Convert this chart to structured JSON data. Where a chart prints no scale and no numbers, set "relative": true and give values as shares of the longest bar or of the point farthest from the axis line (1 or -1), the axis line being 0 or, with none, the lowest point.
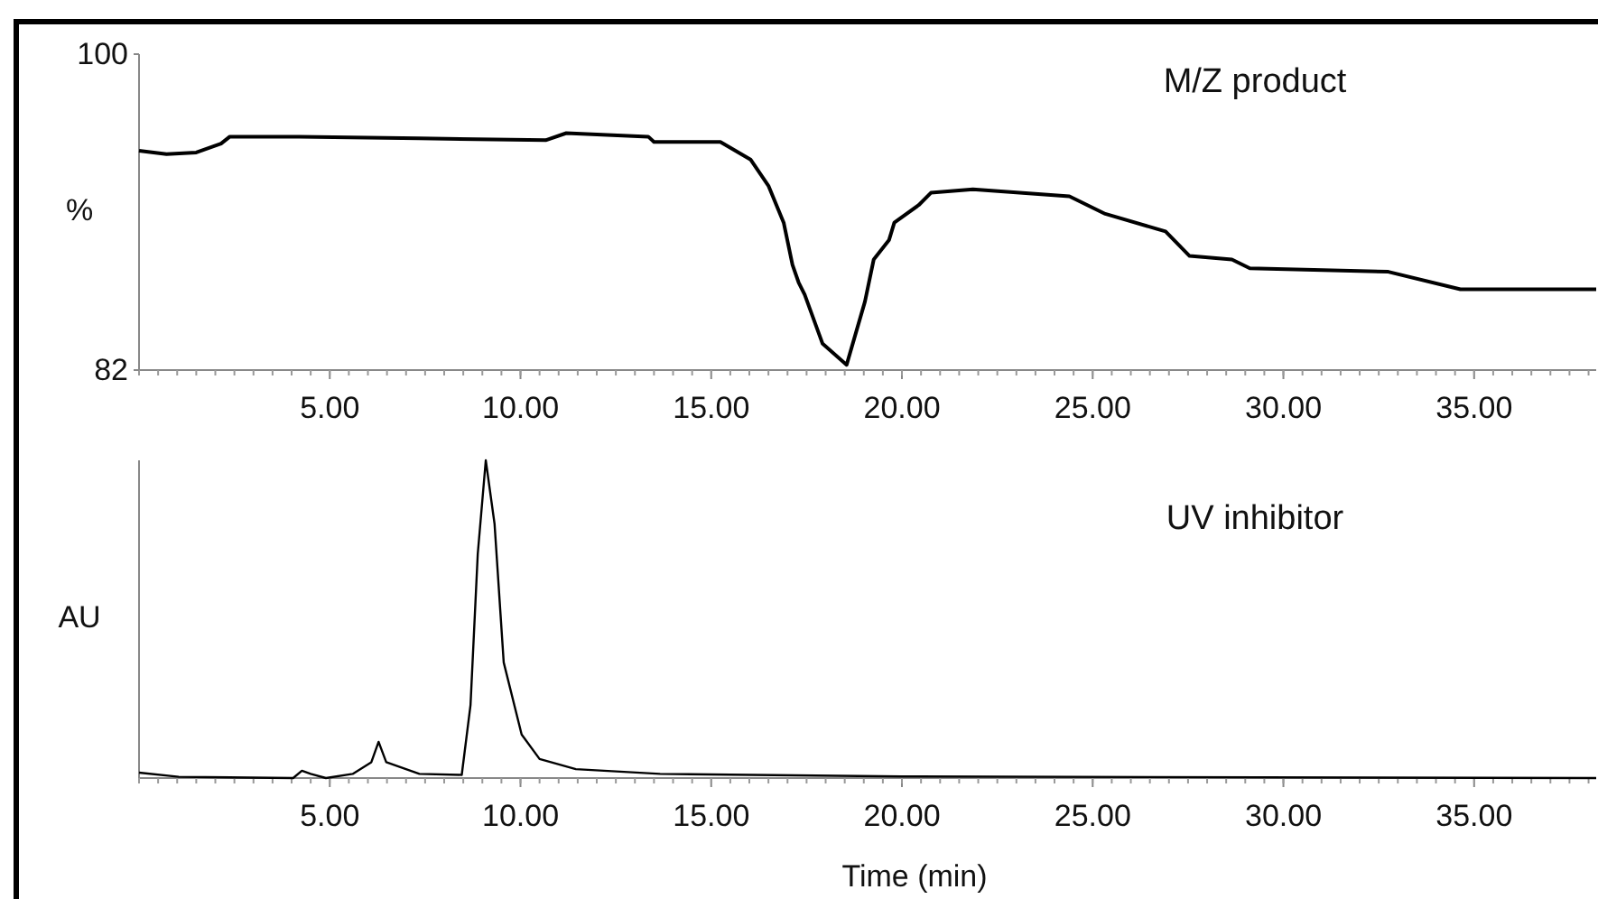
{
  "chart_data": [
    {
      "type": "line",
      "x": [
        0,
        0.72,
        1.5,
        2.15,
        2.38,
        4.2,
        7.35,
        10.66,
        11.2,
        13.35,
        13.5,
        15.24,
        16.03,
        16.5,
        16.9,
        17.13,
        17.29,
        17.45,
        17.92,
        18.55,
        19.03,
        19.26,
        19.66,
        19.8,
        20.44,
        20.76,
        21.86,
        24.39,
        25.33,
        26.91,
        27.54,
        28.65,
        29.12,
        32.75,
        34.64,
        38.2
      ],
      "series": [
        {
          "color": "#000000",
          "values": [
            94.5,
            94.3,
            94.4,
            94.9,
            95.3,
            95.3,
            95.2,
            95.1,
            95.5,
            95.3,
            95.0,
            95.0,
            94.0,
            92.5,
            90.4,
            88.0,
            87.0,
            86.3,
            83.5,
            82.3,
            85.9,
            88.3,
            89.4,
            90.4,
            91.4,
            92.1,
            92.3,
            91.9,
            90.9,
            89.9,
            88.5,
            88.3,
            87.8,
            87.6,
            86.6,
            86.6
          ]
        }
      ],
      "xlim": [
        0,
        38.2
      ],
      "xticks": [
        {
          "value": 5,
          "label": "5.00"
        },
        {
          "value": 10,
          "label": "10.00"
        },
        {
          "value": 15,
          "label": "15.00"
        },
        {
          "value": 20,
          "label": "20.00"
        },
        {
          "value": 25,
          "label": "25.00"
        },
        {
          "value": 30,
          "label": "30.00"
        },
        {
          "value": 35,
          "label": "35.00"
        }
      ],
      "ylim": [
        82,
        100
      ],
      "yticks": [
        82,
        100
      ],
      "ylabel": "%",
      "annotations": [
        "M/Z product"
      ],
      "grid": false
    },
    {
      "type": "line",
      "relative": true,
      "x": [
        0,
        1.04,
        4.04,
        4.27,
        4.5,
        4.9,
        5.6,
        6.09,
        6.28,
        6.48,
        7.35,
        8.46,
        8.69,
        8.88,
        9.09,
        9.32,
        9.56,
        10.03,
        10.5,
        11.45,
        13.66,
        20,
        38.2
      ],
      "series": [
        {
          "color": "#000000",
          "values": [
            0.017,
            0.004,
            0,
            0.023,
            0.013,
            0,
            0.013,
            0.05,
            0.114,
            0.05,
            0.013,
            0.01,
            0.23,
            0.706,
            1,
            0.8,
            0.364,
            0.137,
            0.06,
            0.028,
            0.013,
            0.005,
            0
          ]
        }
      ],
      "xlim": [
        0,
        38.2
      ],
      "xticks": [
        {
          "value": 5,
          "label": "5.00"
        },
        {
          "value": 10,
          "label": "10.00"
        },
        {
          "value": 15,
          "label": "15.00"
        },
        {
          "value": 20,
          "label": "20.00"
        },
        {
          "value": 25,
          "label": "25.00"
        },
        {
          "value": 30,
          "label": "30.00"
        },
        {
          "value": 35,
          "label": "35.00"
        }
      ],
      "xlabel": "Time (min)",
      "ylabel": "AU",
      "annotations": [
        "UV inhibitor"
      ],
      "grid": false
    }
  ]
}
